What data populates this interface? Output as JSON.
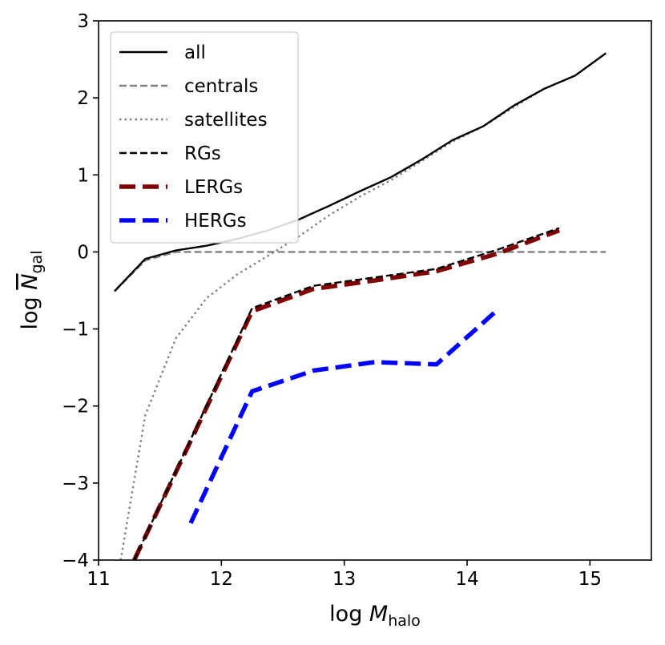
{
  "chart_data": {
    "type": "line",
    "xlabel": "log M_halo",
    "xlabel_main": "log ",
    "xlabel_var": "M",
    "xlabel_sub": "halo",
    "ylabel": "log N̄_gal",
    "ylabel_main": "log ",
    "ylabel_var": "N",
    "ylabel_sub": "gal",
    "xlim": [
      11,
      15.5
    ],
    "ylim": [
      -4,
      3
    ],
    "xticks": [
      11,
      12,
      13,
      14,
      15
    ],
    "xtick_labels": [
      "11",
      "12",
      "13",
      "14",
      "15"
    ],
    "yticks": [
      -4,
      -3,
      -2,
      -1,
      0,
      1,
      2,
      3
    ],
    "ytick_labels": [
      "−4",
      "−3",
      "−2",
      "−1",
      "0",
      "1",
      "2",
      "3"
    ],
    "legend_position": "top-left",
    "grid": false,
    "series": [
      {
        "name": "all",
        "color": "#000000",
        "style": "solid",
        "x": [
          11.13,
          11.38,
          11.63,
          11.88,
          12.13,
          12.38,
          12.63,
          12.88,
          13.13,
          13.38,
          13.63,
          13.88,
          14.13,
          14.38,
          14.63,
          14.88,
          15.13
        ],
        "y": [
          -0.51,
          -0.09,
          0.02,
          0.08,
          0.17,
          0.28,
          0.42,
          0.6,
          0.79,
          0.97,
          1.2,
          1.45,
          1.63,
          1.9,
          2.12,
          2.29,
          2.58
        ]
      },
      {
        "name": "centrals",
        "color": "#808080",
        "style": "dashed",
        "x": [
          11.13,
          11.38,
          11.63,
          11.88,
          12.13,
          12.38,
          12.63,
          12.88,
          13.13,
          13.38,
          13.63,
          13.88,
          14.13,
          14.38,
          14.63,
          14.88,
          15.13
        ],
        "y": [
          -0.51,
          -0.11,
          0.0,
          0.0,
          0.0,
          0.0,
          0.0,
          0.0,
          0.0,
          0.0,
          0.0,
          0.0,
          0.0,
          0.0,
          0.0,
          0.0,
          0.0
        ]
      },
      {
        "name": "satellites",
        "color": "#808080",
        "style": "dotted",
        "x": [
          11.18,
          11.38,
          11.63,
          11.88,
          12.13,
          12.38,
          12.63,
          12.88,
          13.13,
          13.38,
          13.63,
          13.88,
          14.13,
          14.38,
          14.63,
          14.88,
          15.13
        ],
        "y": [
          -4.0,
          -2.12,
          -1.12,
          -0.6,
          -0.29,
          -0.05,
          0.2,
          0.48,
          0.72,
          0.93,
          1.18,
          1.43,
          1.63,
          1.88,
          2.12,
          2.29,
          2.58
        ]
      },
      {
        "name": "RGs",
        "color": "#000000",
        "style": "dashed",
        "x": [
          11.29,
          12.25,
          12.75,
          13.25,
          13.75,
          14.25,
          14.75
        ],
        "y": [
          -4.0,
          -0.73,
          -0.44,
          -0.33,
          -0.22,
          0.03,
          0.31
        ]
      },
      {
        "name": "LERGs",
        "color": "#800000",
        "style": "dashed-thick",
        "x": [
          11.29,
          12.25,
          12.75,
          13.25,
          13.75,
          14.25,
          14.75
        ],
        "y": [
          -4.0,
          -0.77,
          -0.48,
          -0.37,
          -0.25,
          -0.02,
          0.28
        ]
      },
      {
        "name": "HERGs",
        "color": "#0000ff",
        "style": "dashed-thick",
        "x": [
          11.75,
          12.25,
          12.75,
          13.25,
          13.75,
          14.25
        ],
        "y": [
          -3.52,
          -1.81,
          -1.54,
          -1.43,
          -1.46,
          -0.75
        ]
      }
    ]
  }
}
